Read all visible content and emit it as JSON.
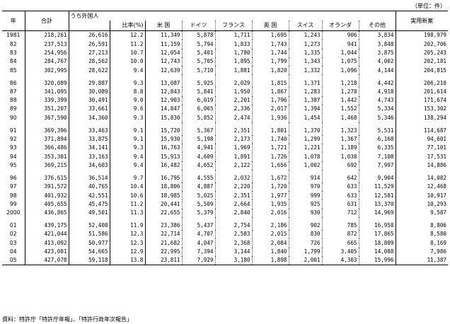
{
  "unit": "（単位：件）",
  "headers": {
    "year": "年",
    "total": "合計",
    "foreign_group": "うち外国人",
    "ratio": "比率(%)",
    "usa": "米 国",
    "germany": "ドイツ",
    "france": "フランス",
    "uk": "英 国",
    "swiss": "スイス",
    "netherlands": "オランダ",
    "others": "その他",
    "utility": "実用新案"
  },
  "rows": [
    [
      "1981",
      "218,261",
      "26,616",
      "12.2",
      "11,349",
      "5,878",
      "1,711",
      "1,695",
      "1,243",
      "906",
      "3,834",
      "198,979"
    ],
    [
      "82",
      "237,513",
      "26,591",
      "11.2",
      "11,159",
      "5,794",
      "1,833",
      "1,743",
      "1,273",
      "941",
      "3,848",
      "202,706"
    ],
    [
      "83",
      "254,956",
      "27,213",
      "10.7",
      "12,054",
      "5,401",
      "1,780",
      "1,744",
      "1,335",
      "1,044",
      "3,875",
      "205,243"
    ],
    [
      "84",
      "284,767",
      "28,562",
      "10.0",
      "12,743",
      "5,705",
      "1,895",
      "1,799",
      "1,343",
      "1,075",
      "4,002",
      "202,181"
    ],
    [
      "85",
      "302,995",
      "28,622",
      "9.4",
      "12,639",
      "5,710",
      "1,881",
      "1,820",
      "1,332",
      "1,096",
      "4,144",
      "204,815"
    ],
    [
      "86",
      "320,089",
      "29,887",
      "9.3",
      "13,087",
      "5,925",
      "2,029",
      "1,815",
      "1,371",
      "1,218",
      "4,442",
      "206,210"
    ],
    [
      "87",
      "341,095",
      "30,089",
      "8.8",
      "12,843",
      "5,841",
      "1,950",
      "1,867",
      "1,283",
      "1,278",
      "4,918",
      "201,614"
    ],
    [
      "88",
      "339,399",
      "30,491",
      "9.0",
      "12,903",
      "6,019",
      "2,201",
      "1,796",
      "1,387",
      "1,442",
      "4,743",
      "171,674"
    ],
    [
      "89",
      "351,207",
      "33,661",
      "9.6",
      "14,847",
      "6,065",
      "2,336",
      "2,017",
      "1,394",
      "1,552",
      "5,334",
      "153,302"
    ],
    [
      "90",
      "367,590",
      "34,360",
      "9.3",
      "15,830",
      "5,852",
      "2,474",
      "1,936",
      "1,454",
      "1,468",
      "5,346",
      "138,294"
    ],
    [
      "91",
      "369,396",
      "33,463",
      "9.1",
      "15,720",
      "5,367",
      "2,351",
      "1,801",
      "1,370",
      "1,323",
      "5,531",
      "114,687"
    ],
    [
      "92",
      "371,894",
      "33,875",
      "9.1",
      "15,930",
      "5,198",
      "2,173",
      "1,740",
      "1,299",
      "1,367",
      "6,168",
      "94,601"
    ],
    [
      "93",
      "366,486",
      "34,141",
      "9.3",
      "16,763",
      "4,941",
      "1,969",
      "1,721",
      "1,221",
      "1,189",
      "6,335",
      "77,101"
    ],
    [
      "94",
      "353,301",
      "33,163",
      "9.4",
      "15,913",
      "4,609",
      "1,891",
      "1,726",
      "1,078",
      "1,038",
      "7,108",
      "17,531"
    ],
    [
      "95",
      "369,215",
      "34,603",
      "9.4",
      "16,482",
      "4,652",
      "2,122",
      "1,656",
      "1,002",
      "692",
      "7,997",
      "14,886"
    ],
    [
      "96",
      "376,615",
      "36,514",
      "9.7",
      "16,795",
      "4,555",
      "2,032",
      "1,672",
      "914",
      "642",
      "9,904",
      "14,082"
    ],
    [
      "97",
      "391,572",
      "40,765",
      "10.4",
      "18,806",
      "4,887",
      "2,220",
      "1,720",
      "970",
      "633",
      "11,529",
      "12,468"
    ],
    [
      "98",
      "401,932",
      "42,551",
      "10.6",
      "18,985",
      "5,025",
      "2,351",
      "1,977",
      "999",
      "633",
      "12,581",
      "10,917"
    ],
    [
      "99",
      "405,655",
      "45,475",
      "11.2",
      "20,441",
      "5,509",
      "2,664",
      "1,935",
      "925",
      "631",
      "13,370",
      "10,293"
    ],
    [
      "2000",
      "436,865",
      "49,501",
      "11.3",
      "22,655",
      "5,379",
      "2,840",
      "2,016",
      "930",
      "712",
      "14,969",
      "9,587"
    ],
    [
      "01",
      "439,175",
      "52,408",
      "11.9",
      "23,386",
      "5,437",
      "2,754",
      "2,186",
      "902",
      "785",
      "16,958",
      "8,806"
    ],
    [
      "02",
      "421,044",
      "51,586",
      "12.3",
      "22,714",
      "4,707",
      "2,583",
      "2,015",
      "830",
      "872",
      "17,865",
      "8,580"
    ],
    [
      "03",
      "413,092",
      "50,977",
      "12.3",
      "21,682",
      "4,047",
      "2,368",
      "2,084",
      "726",
      "665",
      "18,809",
      "8,169"
    ],
    [
      "04",
      "423,081",
      "54,665",
      "12.9",
      "22,995",
      "7,394",
      "3,144",
      "1,840",
      "1,799",
      "3,405",
      "14,088",
      "7,986"
    ],
    [
      "05",
      "427,078",
      "59,118",
      "13.8",
      "23,811",
      "7,929",
      "3,180",
      "1,898",
      "2,001",
      "4,303",
      "15,996",
      "11,387"
    ]
  ],
  "source": "資料：特許庁「特許庁年報」、「特許行政年次報告」"
}
